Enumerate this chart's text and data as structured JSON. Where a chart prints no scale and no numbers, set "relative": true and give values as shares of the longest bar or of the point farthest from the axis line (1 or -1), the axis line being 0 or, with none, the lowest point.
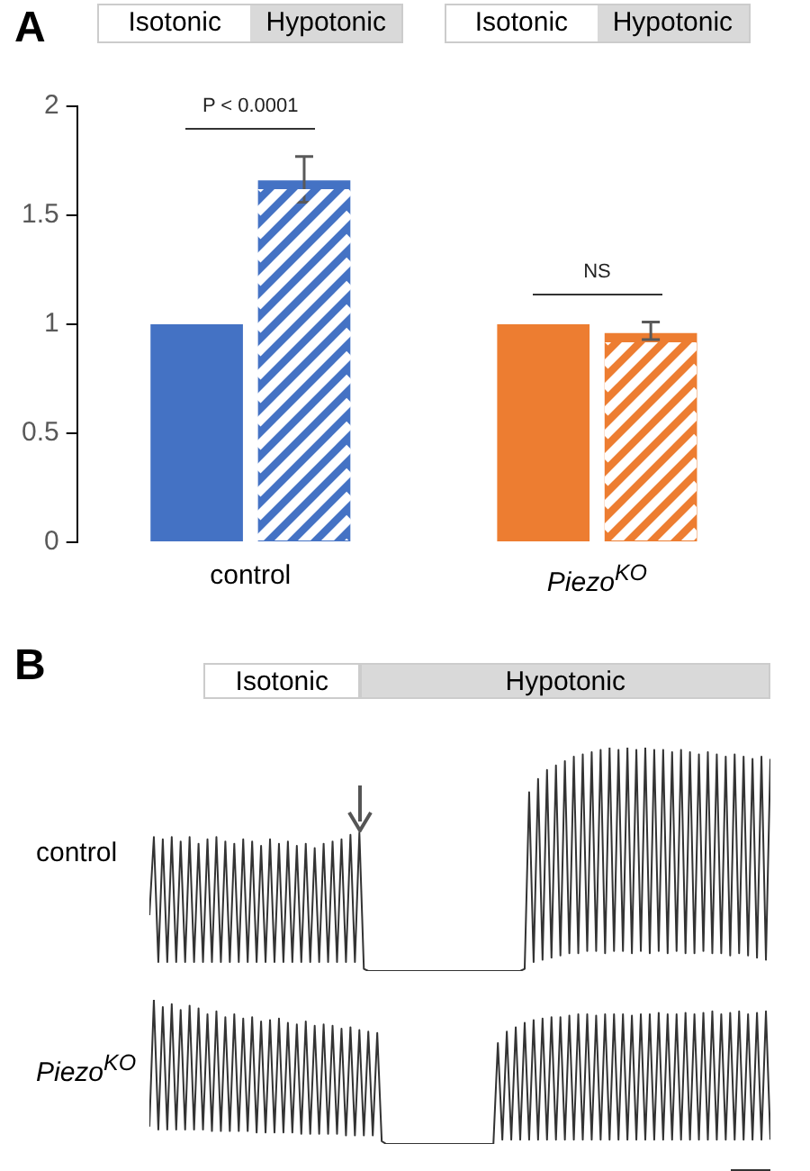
{
  "chart_data": [
    {
      "type": "bar",
      "title": "A",
      "categories": [
        "control",
        "Piezo$^{KO}$"
      ],
      "series": [
        {
          "colors": [
            "#4472c4",
            "#ed7d31"
          ],
          "values": [
            1,
            1
          ]
        },
        {
          "colors": [
            "#4472c4",
            "#ed7d31"
          ],
          "values": [
            1.66,
            0.96
          ],
          "errors": [
            [
              1.56,
              1.77
            ],
            [
              0.93,
              1.01
            ]
          ]
        }
      ],
      "ylim": [
        0,
        2
      ],
      "yticks": [
        0,
        0.5,
        1,
        1.5,
        2
      ],
      "annotations": [
        "Isotonic",
        "Hypotonic",
        "Isotonic",
        "Hypotonic",
        "P < 0.0001",
        "NS"
      ]
    },
    {
      "type": "line",
      "title": "B",
      "relative": true,
      "tick_labels": false,
      "annotations": [
        "Isotonic",
        "Hypotonic"
      ],
      "categories": [
        null,
        null,
        null,
        null,
        null,
        null,
        null,
        null,
        null,
        null,
        null,
        null,
        null,
        null,
        null,
        null,
        null,
        null,
        null,
        null,
        null,
        null,
        null,
        null,
        null,
        null,
        null,
        null,
        null,
        null,
        null,
        null,
        null,
        null,
        null,
        null,
        null,
        null,
        null,
        null,
        null,
        null,
        null,
        null,
        null,
        null,
        null,
        null,
        null,
        null,
        null,
        null,
        null,
        null,
        null,
        null,
        null,
        null,
        null,
        null,
        null,
        null,
        null,
        null,
        null,
        null,
        null,
        null,
        null,
        null,
        null,
        null,
        null,
        null,
        null,
        null,
        null,
        null,
        null,
        null,
        null,
        null,
        null,
        null,
        null,
        null,
        null,
        null,
        null,
        null,
        null,
        null,
        null,
        null,
        null,
        null,
        null,
        null,
        null,
        null,
        null,
        null,
        null,
        null,
        null,
        null,
        null,
        null,
        null,
        null,
        null,
        null,
        null,
        null,
        null,
        null,
        null,
        null,
        null,
        null,
        null,
        null,
        null,
        null,
        null,
        null,
        null,
        null,
        null,
        null,
        null,
        null,
        null,
        null,
        null,
        null,
        null,
        null,
        null,
        null
      ],
      "series": [
        {
          "name": "control",
          "color": "#333333",
          "values": [
            0.25,
            0.6,
            0.04,
            0.59,
            0.04,
            0.6,
            0.04,
            0.58,
            0.04,
            0.6,
            0.04,
            0.57,
            0.04,
            0.59,
            0.04,
            0.6,
            0.04,
            0.58,
            0.04,
            0.57,
            0.04,
            0.59,
            0.04,
            0.58,
            0.04,
            0.56,
            0.04,
            0.59,
            0.04,
            0.57,
            0.04,
            0.58,
            0.04,
            0.56,
            0.04,
            0.57,
            0.04,
            0.55,
            0.04,
            0.57,
            0.04,
            0.58,
            0.04,
            0.59,
            0.04,
            0.61,
            0.04,
            0.62,
            0.01,
            0,
            0,
            0,
            0,
            0,
            0,
            0,
            0,
            0,
            0,
            0,
            0,
            0,
            0,
            0,
            0,
            0,
            0,
            0,
            0,
            0,
            0,
            0,
            0,
            0,
            0,
            0,
            0,
            0,
            0,
            0,
            0,
            0,
            0,
            0,
            0.01,
            0.8,
            0.04,
            0.86,
            0.05,
            0.9,
            0.06,
            0.92,
            0.07,
            0.94,
            0.08,
            0.96,
            0.08,
            0.97,
            0.09,
            0.98,
            0.09,
            0.99,
            0.08,
            1,
            0.09,
            0.99,
            0.09,
            1,
            0.08,
            0.99,
            0.09,
            1,
            0.08,
            0.99,
            0.09,
            0.99,
            0.08,
            0.98,
            0.09,
            0.99,
            0.08,
            0.98,
            0.08,
            0.97,
            0.09,
            0.98,
            0.08,
            0.97,
            0.08,
            0.96,
            0.07,
            0.97,
            0.08,
            0.96,
            0.07,
            0.95,
            0.06,
            0.96,
            0.05,
            0.95
          ]
        }
      ]
    },
    {
      "type": "line",
      "relative": true,
      "tick_labels": false,
      "categories": [
        null,
        null,
        null,
        null,
        null,
        null,
        null,
        null,
        null,
        null,
        null,
        null,
        null,
        null,
        null,
        null,
        null,
        null,
        null,
        null,
        null,
        null,
        null,
        null,
        null,
        null,
        null,
        null,
        null,
        null,
        null,
        null,
        null,
        null,
        null,
        null,
        null,
        null,
        null,
        null,
        null,
        null,
        null,
        null,
        null,
        null,
        null,
        null,
        null,
        null,
        null,
        null,
        null,
        null,
        null,
        null,
        null,
        null,
        null,
        null,
        null,
        null,
        null,
        null,
        null,
        null,
        null,
        null,
        null,
        null,
        null,
        null,
        null,
        null,
        null,
        null,
        null,
        null,
        null,
        null,
        null,
        null,
        null,
        null,
        null,
        null,
        null,
        null,
        null,
        null,
        null,
        null,
        null,
        null,
        null,
        null,
        null,
        null,
        null,
        null,
        null,
        null,
        null,
        null,
        null,
        null,
        null,
        null,
        null,
        null,
        null,
        null,
        null,
        null,
        null,
        null,
        null,
        null,
        null,
        null,
        null,
        null,
        null,
        null,
        null,
        null,
        null,
        null,
        null,
        null,
        null,
        null,
        null,
        null,
        null,
        null,
        null,
        null,
        null,
        null
      ],
      "series": [
        {
          "name": "Piezo$^{KO}$",
          "color": "#333333",
          "values": [
            0.12,
            1,
            0.1,
            0.95,
            0.1,
            0.97,
            0.1,
            0.93,
            0.1,
            0.96,
            0.1,
            0.94,
            0.1,
            0.9,
            0.09,
            0.92,
            0.09,
            0.88,
            0.09,
            0.9,
            0.09,
            0.87,
            0.09,
            0.88,
            0.08,
            0.85,
            0.08,
            0.86,
            0.08,
            0.87,
            0.08,
            0.84,
            0.08,
            0.83,
            0.07,
            0.85,
            0.07,
            0.82,
            0.07,
            0.83,
            0.07,
            0.82,
            0.07,
            0.8,
            0.06,
            0.81,
            0.06,
            0.79,
            0.06,
            0.78,
            0.06,
            0.77,
            0.02,
            0,
            0,
            0,
            0,
            0,
            0,
            0,
            0,
            0,
            0,
            0,
            0,
            0,
            0,
            0,
            0,
            0,
            0,
            0,
            0,
            0,
            0,
            0,
            0,
            0,
            0.7,
            0.03,
            0.78,
            0.03,
            0.81,
            0.03,
            0.84,
            0.03,
            0.86,
            0.03,
            0.87,
            0.03,
            0.88,
            0.03,
            0.88,
            0.03,
            0.89,
            0.03,
            0.9,
            0.03,
            0.9,
            0.03,
            0.89,
            0.03,
            0.9,
            0.03,
            0.9,
            0.03,
            0.9,
            0.03,
            0.89,
            0.03,
            0.9,
            0.03,
            0.9,
            0.03,
            0.91,
            0.03,
            0.9,
            0.03,
            0.9,
            0.03,
            0.91,
            0.03,
            0.9,
            0.03,
            0.91,
            0.03,
            0.92,
            0.03,
            0.9,
            0.03,
            0.91,
            0.03,
            0.92,
            0.03,
            0.9,
            0.03,
            0.91,
            0.03,
            0.92,
            0.03
          ]
        }
      ]
    }
  ]
}
